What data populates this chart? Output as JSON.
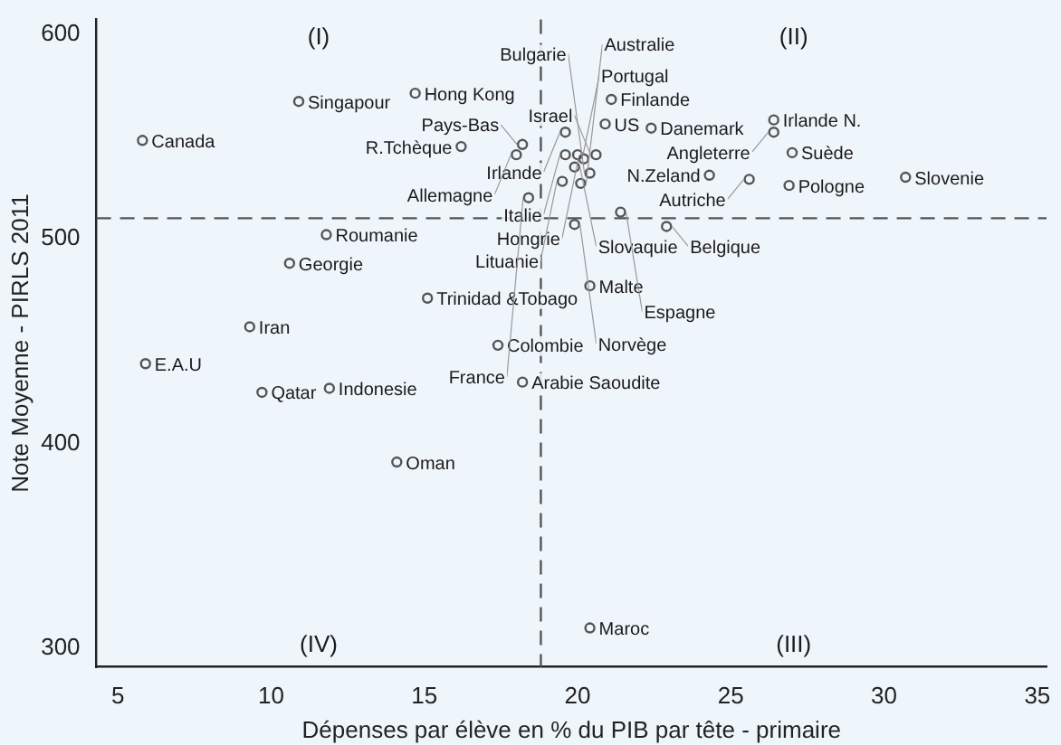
{
  "chart_data": {
    "type": "scatter",
    "xlabel": "Dépenses par élève en % du PIB par tête - primaire",
    "ylabel": "Note Moyenne - PIRLS 2011",
    "xlim": [
      4.3,
      35.3
    ],
    "xticks": [
      5,
      10,
      15,
      20,
      25,
      30,
      35
    ],
    "ylim": [
      291,
      607
    ],
    "yticks": [
      300,
      400,
      500,
      600
    ],
    "grid": false,
    "legend": false,
    "marker": "circle",
    "ref_lines": [
      {
        "axis": "x",
        "value": 18.8,
        "line_style": "dashed",
        "color": "#555555"
      },
      {
        "axis": "y",
        "value": 510,
        "line_style": "dashed",
        "color": "#555555"
      }
    ],
    "annotations": [
      "(I)",
      "(II)",
      "(III)",
      "(IV)"
    ],
    "series": [
      {
        "color": "#555555",
        "x": [
          10.9,
          14.7,
          5.8,
          11.8,
          10.6,
          9.3,
          5.9,
          9.7,
          11.9,
          14.1,
          17.4,
          18.2,
          20.4,
          15.1,
          20.4,
          21.1,
          20.9,
          22.4,
          19.6,
          26.4,
          26.4,
          27.0,
          30.7,
          24.3,
          25.6,
          26.9,
          16.2,
          18.2,
          18.0,
          20.0,
          20.6,
          19.6,
          20.2,
          19.9,
          19.5,
          20.4,
          20.1,
          18.4,
          21.4,
          19.9,
          22.9
        ],
        "values": [
          567,
          571,
          548,
          502,
          488,
          457,
          439,
          425,
          427,
          391,
          448,
          430,
          310,
          471,
          477,
          568,
          556,
          554,
          552,
          558,
          552,
          542,
          530,
          531,
          529,
          526,
          545,
          546,
          541,
          541,
          541,
          541,
          539,
          535,
          528,
          532,
          527,
          520,
          513,
          507,
          506
        ],
        "value_labels": [
          "Singapour",
          "Hong Kong",
          "Canada",
          "Roumanie",
          "Georgie",
          "Iran",
          "E.A.U",
          "Qatar",
          "Indonesie",
          "Oman",
          "Colombie",
          "Arabie Saoudite",
          "Maroc",
          "Trinidad &Tobago",
          "Malte",
          "Finlande",
          "US",
          "Danemark",
          "Irlande",
          "Irlande N.",
          "Angleterre",
          "Suède",
          "Slovenie",
          "N.Zeland",
          "Autriche",
          "Pologne",
          "R.Tchèque",
          "Pays-Bas",
          "Allemagne",
          "Portugal",
          "Israel",
          "Italie",
          "Hongrie",
          "Slovaquie",
          "Lituanie",
          "Bulgarie",
          "Australie",
          "France",
          "Espagne",
          "Norvège",
          "Belgique"
        ]
      }
    ]
  }
}
